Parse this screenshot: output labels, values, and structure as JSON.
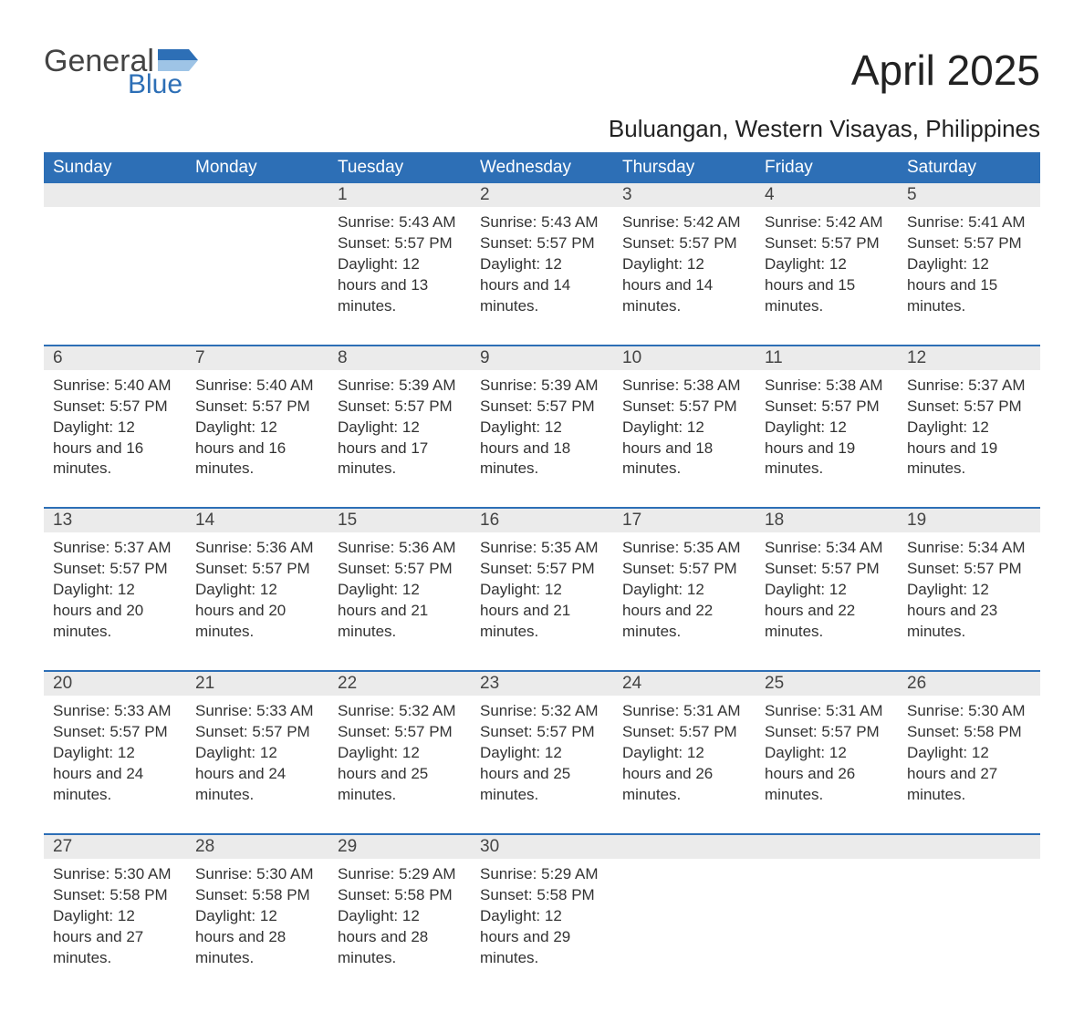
{
  "logo": {
    "word1": "General",
    "word2": "Blue"
  },
  "title": "April 2025",
  "location": "Buluangan, Western Visayas, Philippines",
  "colors": {
    "header_bg": "#2d6fb6",
    "header_text": "#ffffff",
    "daynum_bg": "#ebebeb",
    "rule": "#2d6fb6",
    "logo_gray": "#444444",
    "logo_blue": "#2d6fb6",
    "text": "#333333",
    "background": "#ffffff"
  },
  "fonts": {
    "family": "Arial",
    "title_pt": 46,
    "location_pt": 26,
    "header_pt": 19,
    "body_pt": 17
  },
  "labels": {
    "sunrise": "Sunrise:",
    "sunset": "Sunset:",
    "daylight": "Daylight:"
  },
  "day_headers": [
    "Sunday",
    "Monday",
    "Tuesday",
    "Wednesday",
    "Thursday",
    "Friday",
    "Saturday"
  ],
  "weeks": [
    [
      null,
      null,
      {
        "n": "1",
        "sunrise": "5:43 AM",
        "sunset": "5:57 PM",
        "daylight": "12 hours and 13 minutes."
      },
      {
        "n": "2",
        "sunrise": "5:43 AM",
        "sunset": "5:57 PM",
        "daylight": "12 hours and 14 minutes."
      },
      {
        "n": "3",
        "sunrise": "5:42 AM",
        "sunset": "5:57 PM",
        "daylight": "12 hours and 14 minutes."
      },
      {
        "n": "4",
        "sunrise": "5:42 AM",
        "sunset": "5:57 PM",
        "daylight": "12 hours and 15 minutes."
      },
      {
        "n": "5",
        "sunrise": "5:41 AM",
        "sunset": "5:57 PM",
        "daylight": "12 hours and 15 minutes."
      }
    ],
    [
      {
        "n": "6",
        "sunrise": "5:40 AM",
        "sunset": "5:57 PM",
        "daylight": "12 hours and 16 minutes."
      },
      {
        "n": "7",
        "sunrise": "5:40 AM",
        "sunset": "5:57 PM",
        "daylight": "12 hours and 16 minutes."
      },
      {
        "n": "8",
        "sunrise": "5:39 AM",
        "sunset": "5:57 PM",
        "daylight": "12 hours and 17 minutes."
      },
      {
        "n": "9",
        "sunrise": "5:39 AM",
        "sunset": "5:57 PM",
        "daylight": "12 hours and 18 minutes."
      },
      {
        "n": "10",
        "sunrise": "5:38 AM",
        "sunset": "5:57 PM",
        "daylight": "12 hours and 18 minutes."
      },
      {
        "n": "11",
        "sunrise": "5:38 AM",
        "sunset": "5:57 PM",
        "daylight": "12 hours and 19 minutes."
      },
      {
        "n": "12",
        "sunrise": "5:37 AM",
        "sunset": "5:57 PM",
        "daylight": "12 hours and 19 minutes."
      }
    ],
    [
      {
        "n": "13",
        "sunrise": "5:37 AM",
        "sunset": "5:57 PM",
        "daylight": "12 hours and 20 minutes."
      },
      {
        "n": "14",
        "sunrise": "5:36 AM",
        "sunset": "5:57 PM",
        "daylight": "12 hours and 20 minutes."
      },
      {
        "n": "15",
        "sunrise": "5:36 AM",
        "sunset": "5:57 PM",
        "daylight": "12 hours and 21 minutes."
      },
      {
        "n": "16",
        "sunrise": "5:35 AM",
        "sunset": "5:57 PM",
        "daylight": "12 hours and 21 minutes."
      },
      {
        "n": "17",
        "sunrise": "5:35 AM",
        "sunset": "5:57 PM",
        "daylight": "12 hours and 22 minutes."
      },
      {
        "n": "18",
        "sunrise": "5:34 AM",
        "sunset": "5:57 PM",
        "daylight": "12 hours and 22 minutes."
      },
      {
        "n": "19",
        "sunrise": "5:34 AM",
        "sunset": "5:57 PM",
        "daylight": "12 hours and 23 minutes."
      }
    ],
    [
      {
        "n": "20",
        "sunrise": "5:33 AM",
        "sunset": "5:57 PM",
        "daylight": "12 hours and 24 minutes."
      },
      {
        "n": "21",
        "sunrise": "5:33 AM",
        "sunset": "5:57 PM",
        "daylight": "12 hours and 24 minutes."
      },
      {
        "n": "22",
        "sunrise": "5:32 AM",
        "sunset": "5:57 PM",
        "daylight": "12 hours and 25 minutes."
      },
      {
        "n": "23",
        "sunrise": "5:32 AM",
        "sunset": "5:57 PM",
        "daylight": "12 hours and 25 minutes."
      },
      {
        "n": "24",
        "sunrise": "5:31 AM",
        "sunset": "5:57 PM",
        "daylight": "12 hours and 26 minutes."
      },
      {
        "n": "25",
        "sunrise": "5:31 AM",
        "sunset": "5:57 PM",
        "daylight": "12 hours and 26 minutes."
      },
      {
        "n": "26",
        "sunrise": "5:30 AM",
        "sunset": "5:58 PM",
        "daylight": "12 hours and 27 minutes."
      }
    ],
    [
      {
        "n": "27",
        "sunrise": "5:30 AM",
        "sunset": "5:58 PM",
        "daylight": "12 hours and 27 minutes."
      },
      {
        "n": "28",
        "sunrise": "5:30 AM",
        "sunset": "5:58 PM",
        "daylight": "12 hours and 28 minutes."
      },
      {
        "n": "29",
        "sunrise": "5:29 AM",
        "sunset": "5:58 PM",
        "daylight": "12 hours and 28 minutes."
      },
      {
        "n": "30",
        "sunrise": "5:29 AM",
        "sunset": "5:58 PM",
        "daylight": "12 hours and 29 minutes."
      },
      null,
      null,
      null
    ]
  ]
}
